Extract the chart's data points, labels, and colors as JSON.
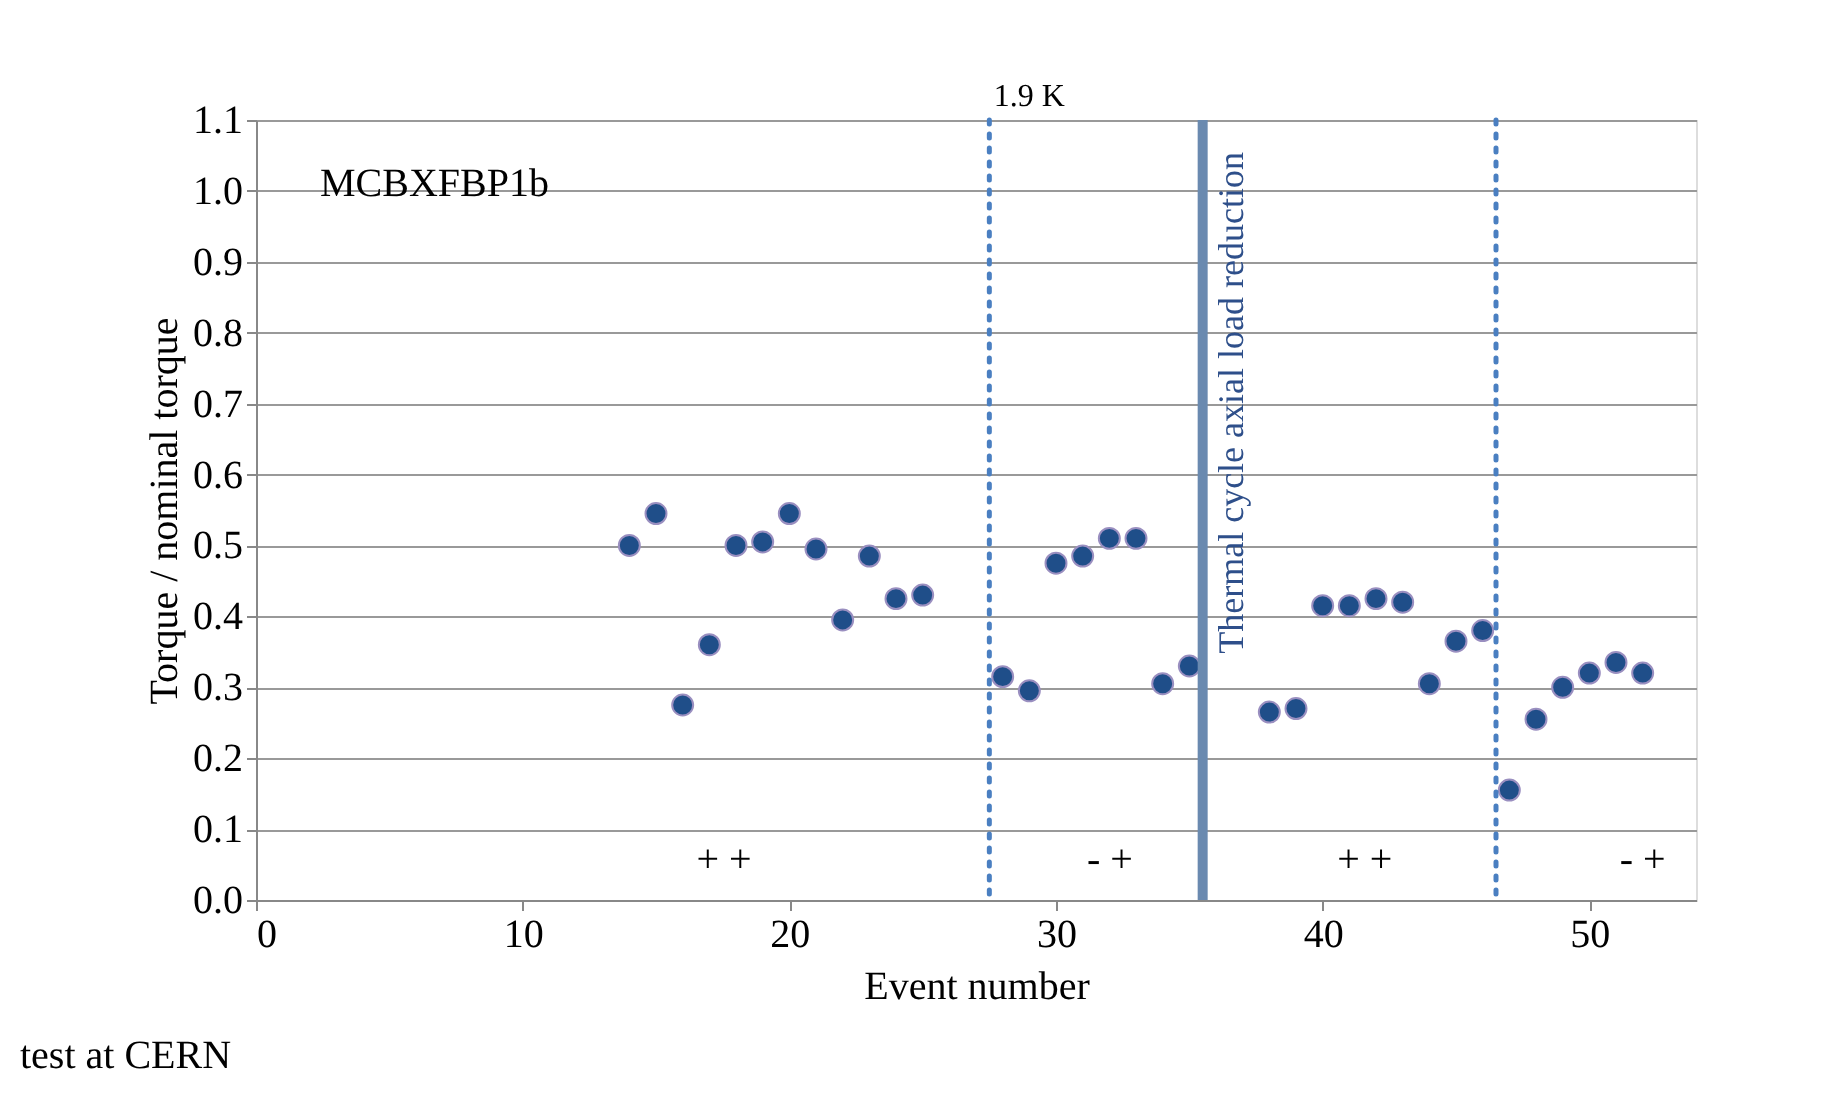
{
  "chart_data": {
    "type": "scatter",
    "xlabel": "Event number",
    "ylabel": "Torque / nominal torque",
    "x": [
      14,
      15,
      16,
      17,
      18,
      19,
      20,
      21,
      22,
      23,
      24,
      25,
      28,
      29,
      30,
      31,
      32,
      33,
      34,
      35,
      38,
      39,
      40,
      41,
      42,
      43,
      44,
      45,
      46,
      47,
      48,
      49,
      50,
      51,
      52
    ],
    "series": [
      {
        "color": "#1f4e89",
        "values": [
          0.5,
          0.545,
          0.275,
          0.36,
          0.5,
          0.505,
          0.545,
          0.495,
          0.395,
          0.485,
          0.425,
          0.43,
          0.315,
          0.295,
          0.475,
          0.485,
          0.51,
          0.51,
          0.305,
          0.33,
          0.265,
          0.27,
          0.415,
          0.415,
          0.425,
          0.42,
          0.305,
          0.365,
          0.38,
          0.155,
          0.255,
          0.3,
          0.32,
          0.335,
          0.32
        ]
      }
    ],
    "xlim": [
      0,
      54
    ],
    "xticks": [
      0,
      10,
      20,
      30,
      40,
      50
    ],
    "ylim": [
      0,
      1.1
    ],
    "yticks": [
      {
        "value": 0,
        "label": "0.0"
      },
      0.1,
      0.2,
      0.3,
      0.4,
      0.5,
      0.6,
      0.7,
      0.8,
      0.9,
      {
        "value": 1,
        "label": "1.0"
      },
      1.1
    ],
    "grid": "y",
    "marker": "circle",
    "ref_lines": [
      {
        "axis": "x",
        "value": 27.5,
        "label": "1.9 K",
        "color": "#4a7fc1",
        "line_style": "dotted"
      },
      {
        "axis": "x",
        "value": 35.5,
        "label": "Thermal cycle axial load reduction",
        "color": "#6a8ab0",
        "line_style": "solid"
      },
      {
        "axis": "x",
        "value": 46.5,
        "color": "#4a7fc1",
        "line_style": "dotted"
      }
    ],
    "annotations": [
      "MCBXFBP1b",
      "test at CERN",
      "+ +",
      "- +",
      "+ +",
      "- +"
    ]
  }
}
